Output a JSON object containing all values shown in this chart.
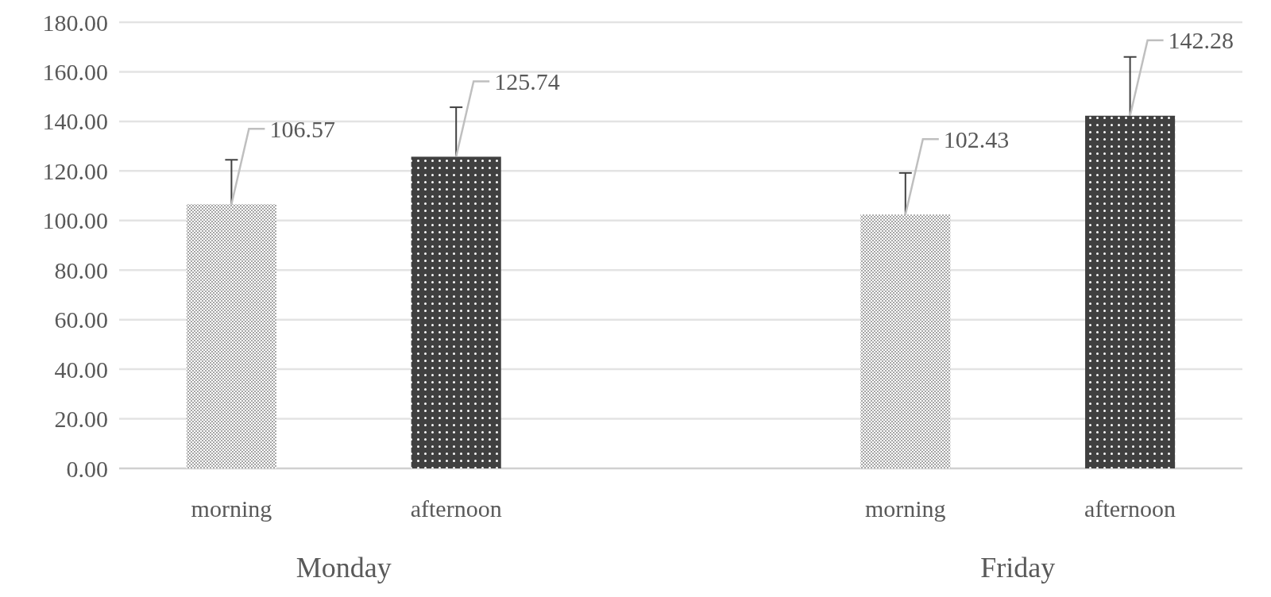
{
  "chart_data": {
    "type": "bar",
    "categories": [
      "morning",
      "afternoon",
      null,
      "morning",
      "afternoon"
    ],
    "values": [
      106.57,
      125.74,
      null,
      102.43,
      142.28
    ],
    "colors": [
      "#a6a6a6",
      "#404040",
      null,
      "#a6a6a6",
      "#404040"
    ],
    "errors": [
      [
        106.57,
        124.5
      ],
      [
        125.74,
        145.7
      ],
      null,
      [
        102.43,
        119.2
      ],
      [
        142.28,
        166
      ]
    ],
    "data_labels": true,
    "ylim": [
      0,
      180
    ],
    "yticks": [
      {
        "value": 0,
        "label": "0.00"
      },
      {
        "value": 20,
        "label": "20.00"
      },
      {
        "value": 40,
        "label": "40.00"
      },
      {
        "value": 60,
        "label": "60.00"
      },
      {
        "value": 80,
        "label": "80.00"
      },
      {
        "value": 100,
        "label": "100.00"
      },
      {
        "value": 120,
        "label": "120.00"
      },
      {
        "value": 140,
        "label": "140.00"
      },
      {
        "value": 160,
        "label": "160.00"
      },
      {
        "value": 180,
        "label": "180.00"
      }
    ],
    "grid": "y",
    "annotations": [
      "Monday",
      "Friday"
    ]
  }
}
